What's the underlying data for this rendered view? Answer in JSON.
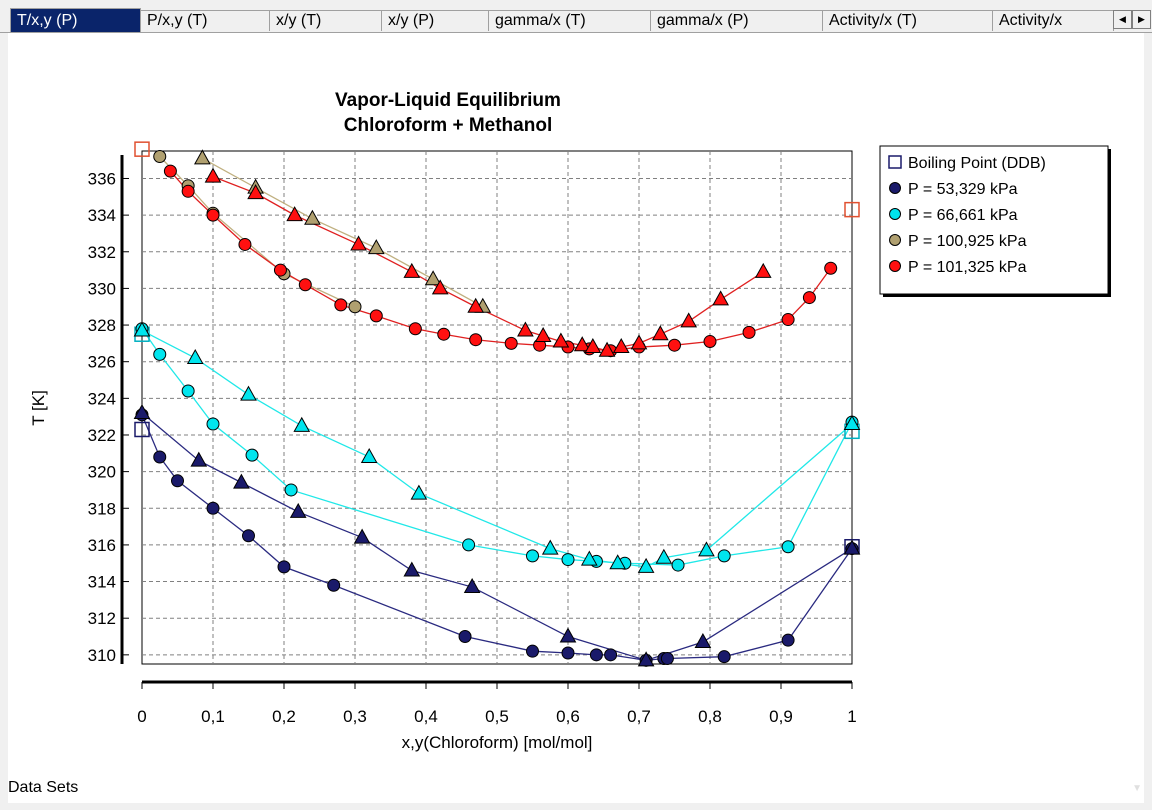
{
  "tabs": [
    {
      "label": "T/x,y (P)",
      "active": true
    },
    {
      "label": "P/x,y (T)",
      "active": false
    },
    {
      "label": "x/y (T)",
      "active": false
    },
    {
      "label": "x/y (P)",
      "active": false
    },
    {
      "label": "gamma/x (T)",
      "active": false
    },
    {
      "label": "gamma/x (P)",
      "active": false
    },
    {
      "label": "Activity/x (T)",
      "active": false
    },
    {
      "label": "Activity/x",
      "active": false
    }
  ],
  "footer": {
    "data_sets_label": "Data Sets"
  },
  "chart_data": {
    "type": "scatter",
    "title": "Vapor-Liquid Equilibrium",
    "subtitle": "Chloroform + Methanol",
    "xlabel": "x,y(Chloroform) [mol/mol]",
    "ylabel": "T [K]",
    "xlim": [
      0,
      1
    ],
    "ylim": [
      309.5,
      337.5
    ],
    "xticks": [
      0,
      0.1,
      0.2,
      0.3,
      0.4,
      0.5,
      0.6,
      0.7,
      0.8,
      0.9,
      1
    ],
    "xtick_labels": [
      "0",
      "0,1",
      "0,2",
      "0,3",
      "0,4",
      "0,5",
      "0,6",
      "0,7",
      "0,8",
      "0,9",
      "1"
    ],
    "yticks": [
      310,
      312,
      314,
      316,
      318,
      320,
      322,
      324,
      326,
      328,
      330,
      332,
      334,
      336
    ],
    "grid": true,
    "legend_position": "top-right",
    "legend": [
      {
        "label": "Boiling Point (DDB)",
        "marker": "square",
        "color": "#1a1a6a",
        "fill": "#ffffff"
      },
      {
        "label": "P = 53,329 kPa",
        "marker": "circle",
        "color": "#1a1a6a",
        "fill": "#1a1a6a"
      },
      {
        "label": "P = 66,661 kPa",
        "marker": "circle",
        "color": "#00e0e0",
        "fill": "#00e5ee"
      },
      {
        "label": "P = 100,925 kPa",
        "marker": "circle",
        "color": "#c0a860",
        "fill": "#b0a070"
      },
      {
        "label": "P = 101,325 kPa",
        "marker": "circle",
        "color": "#e00000",
        "fill": "#ff1010"
      }
    ],
    "boiling_points": [
      {
        "x": 0,
        "y": 337.6,
        "color": "#e05030"
      },
      {
        "x": 1,
        "y": 334.3,
        "color": "#e05030"
      },
      {
        "x": 0,
        "y": 327.5,
        "color": "#00b0c0"
      },
      {
        "x": 1,
        "y": 322.2,
        "color": "#00b0c0"
      },
      {
        "x": 0,
        "y": 322.3,
        "color": "#1a1a6a"
      },
      {
        "x": 1,
        "y": 315.9,
        "color": "#1a1a6a"
      }
    ],
    "series": [
      {
        "name": "P = 53,329 kPa",
        "color": "#1a1a6a",
        "line": "#2a2a80",
        "fill": "#1a1a6a",
        "liquid": [
          [
            0,
            323.1
          ],
          [
            0.025,
            320.8
          ],
          [
            0.05,
            319.5
          ],
          [
            0.1,
            318
          ],
          [
            0.15,
            316.5
          ],
          [
            0.2,
            314.8
          ],
          [
            0.27,
            313.8
          ],
          [
            0.455,
            311
          ],
          [
            0.55,
            310.2
          ],
          [
            0.6,
            310.1
          ],
          [
            0.64,
            310
          ],
          [
            0.66,
            310
          ],
          [
            0.71,
            309.7
          ],
          [
            0.735,
            309.8
          ],
          [
            0.74,
            309.8
          ],
          [
            0.82,
            309.9
          ],
          [
            0.91,
            310.8
          ],
          [
            1,
            315.8
          ]
        ],
        "vapor": [
          [
            0,
            323.2
          ],
          [
            0.08,
            320.6
          ],
          [
            0.14,
            319.4
          ],
          [
            0.22,
            317.8
          ],
          [
            0.31,
            316.4
          ],
          [
            0.38,
            314.6
          ],
          [
            0.465,
            313.7
          ],
          [
            0.6,
            311
          ],
          [
            0.71,
            309.7
          ],
          [
            0.79,
            310.7
          ],
          [
            1,
            315.8
          ]
        ]
      },
      {
        "name": "P = 66,661 kPa",
        "color": "#006080",
        "line": "#20e8e8",
        "fill": "#00e5ee",
        "liquid": [
          [
            0,
            327.8
          ],
          [
            0.025,
            326.4
          ],
          [
            0.065,
            324.4
          ],
          [
            0.1,
            322.6
          ],
          [
            0.155,
            320.9
          ],
          [
            0.21,
            319
          ],
          [
            0.46,
            316
          ],
          [
            0.55,
            315.4
          ],
          [
            0.6,
            315.2
          ],
          [
            0.64,
            315.1
          ],
          [
            0.68,
            315
          ],
          [
            0.755,
            314.9
          ],
          [
            0.82,
            315.4
          ],
          [
            0.91,
            315.9
          ],
          [
            1,
            322.7
          ]
        ],
        "vapor": [
          [
            0,
            327.7
          ],
          [
            0.075,
            326.2
          ],
          [
            0.15,
            324.2
          ],
          [
            0.225,
            322.5
          ],
          [
            0.32,
            320.8
          ],
          [
            0.39,
            318.8
          ],
          [
            0.575,
            315.8
          ],
          [
            0.63,
            315.2
          ],
          [
            0.67,
            315
          ],
          [
            0.71,
            314.8
          ],
          [
            0.735,
            315.3
          ],
          [
            0.795,
            315.7
          ],
          [
            1,
            322.6
          ]
        ]
      },
      {
        "name": "P = 100,925 kPa",
        "color": "#605030",
        "line": "#c0b080",
        "fill": "#b0a070",
        "liquid": [
          [
            0.025,
            337.2
          ],
          [
            0.065,
            335.6
          ],
          [
            0.1,
            334.1
          ],
          [
            0.2,
            330.8
          ],
          [
            0.3,
            329
          ]
        ],
        "vapor": [
          [
            0.085,
            337.1
          ],
          [
            0.16,
            335.5
          ],
          [
            0.24,
            333.8
          ],
          [
            0.33,
            332.2
          ],
          [
            0.41,
            330.5
          ],
          [
            0.48,
            329
          ]
        ]
      },
      {
        "name": "P = 101,325 kPa",
        "color": "#500000",
        "line": "#e02020",
        "fill": "#ff1010",
        "liquid": [
          [
            0.04,
            336.4
          ],
          [
            0.065,
            335.3
          ],
          [
            0.1,
            334
          ],
          [
            0.145,
            332.4
          ],
          [
            0.195,
            331
          ],
          [
            0.23,
            330.2
          ],
          [
            0.28,
            329.1
          ],
          [
            0.33,
            328.5
          ],
          [
            0.385,
            327.8
          ],
          [
            0.425,
            327.5
          ],
          [
            0.47,
            327.2
          ],
          [
            0.52,
            327
          ],
          [
            0.56,
            326.9
          ],
          [
            0.6,
            326.8
          ],
          [
            0.63,
            326.7
          ],
          [
            0.66,
            326.6
          ],
          [
            0.7,
            326.8
          ],
          [
            0.75,
            326.9
          ],
          [
            0.8,
            327.1
          ],
          [
            0.855,
            327.6
          ],
          [
            0.91,
            328.3
          ],
          [
            0.94,
            329.5
          ],
          [
            0.97,
            331.1
          ]
        ],
        "vapor": [
          [
            0.1,
            336.1
          ],
          [
            0.16,
            335.2
          ],
          [
            0.215,
            334
          ],
          [
            0.305,
            332.4
          ],
          [
            0.38,
            330.9
          ],
          [
            0.42,
            330
          ],
          [
            0.47,
            329
          ],
          [
            0.54,
            327.7
          ],
          [
            0.565,
            327.4
          ],
          [
            0.59,
            327.1
          ],
          [
            0.62,
            326.9
          ],
          [
            0.635,
            326.8
          ],
          [
            0.655,
            326.6
          ],
          [
            0.675,
            326.8
          ],
          [
            0.7,
            327
          ],
          [
            0.73,
            327.5
          ],
          [
            0.77,
            328.2
          ],
          [
            0.815,
            329.4
          ],
          [
            0.875,
            330.9
          ]
        ]
      }
    ]
  }
}
